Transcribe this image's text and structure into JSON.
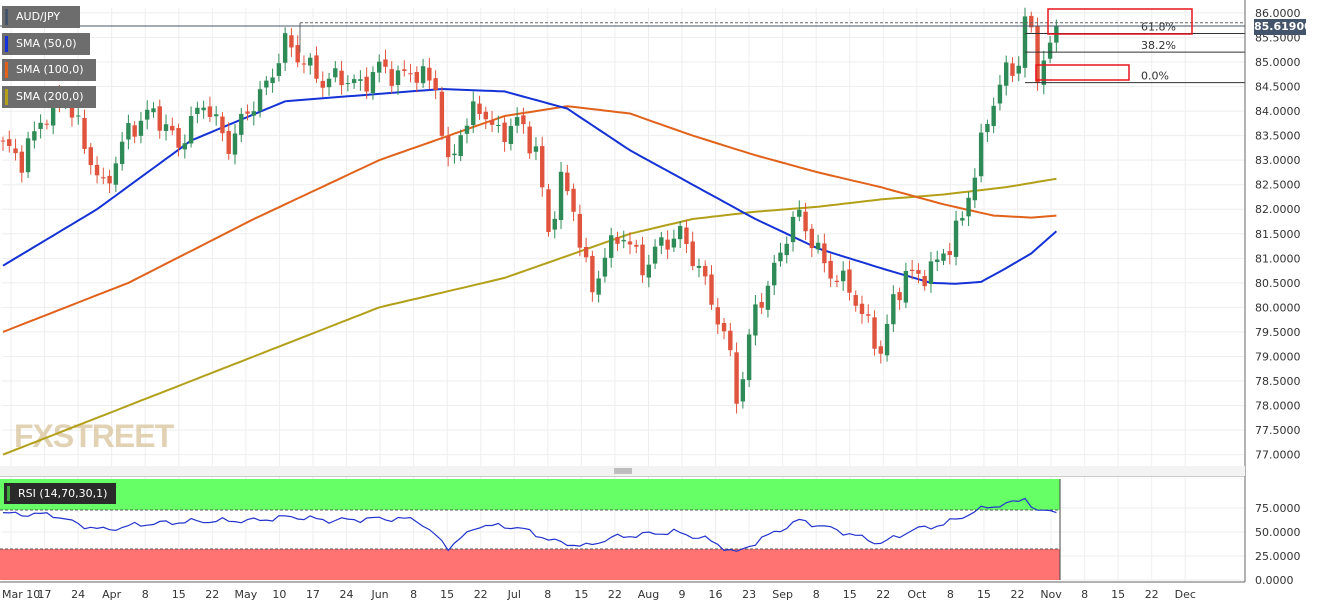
{
  "symbol": "AUD/JPY",
  "indicators": [
    {
      "label": "SMA (50,0)",
      "color": "#1432d6"
    },
    {
      "label": "SMA (100,0)",
      "color": "#e0621b"
    },
    {
      "label": "SMA (200,0)",
      "color": "#b3a01a"
    }
  ],
  "rsi_label": "RSI (14,70,30,1)",
  "last_price": "85.61900",
  "watermark": "FXSTREET",
  "colors": {
    "bull": "#2e8b57",
    "bear": "#e0533d",
    "sma50": "#1432d6",
    "sma100": "#e0621b",
    "sma200": "#b3a01a",
    "rsi_line": "#2233cc",
    "rsi_overbought_zone": "#66ff66",
    "rsi_oversold_zone": "#ff7373",
    "annotation_box": "#e8141e"
  },
  "fibonacci": {
    "levels": [
      {
        "label": "61.8%",
        "value": 85.58
      },
      {
        "label": "38.2%",
        "value": 85.2
      },
      {
        "label": "0.0%",
        "value": 84.58
      }
    ],
    "top_value": 85.8
  },
  "chart_data": [
    {
      "type": "candlestick",
      "title": "AUD/JPY",
      "x_ticks": [
        "Mar 10",
        "17",
        "24",
        "Apr",
        "8",
        "15",
        "22",
        "May",
        "10",
        "17",
        "24",
        "Jun",
        "8",
        "15",
        "22",
        "Jul",
        "8",
        "15",
        "22",
        "Aug",
        "9",
        "16",
        "23",
        "Sep",
        "8",
        "15",
        "22",
        "Oct",
        "8",
        "15",
        "22",
        "Nov",
        "8",
        "15",
        "22",
        "Dec"
      ],
      "y_ticks": [
        "77.0000",
        "77.5000",
        "78.0000",
        "78.5000",
        "79.0000",
        "79.5000",
        "80.0000",
        "80.5000",
        "81.0000",
        "81.5000",
        "82.0000",
        "82.5000",
        "83.0000",
        "83.5000",
        "84.0000",
        "84.5000",
        "85.0000",
        "85.5000",
        "86.0000"
      ],
      "ylim": [
        76.85,
        86.1
      ],
      "close_anchors": [
        [
          0,
          83.3
        ],
        [
          3,
          83.0
        ],
        [
          6,
          83.8
        ],
        [
          10,
          84.3
        ],
        [
          14,
          83.0
        ],
        [
          16,
          82.4
        ],
        [
          20,
          83.6
        ],
        [
          24,
          84.0
        ],
        [
          28,
          83.3
        ],
        [
          32,
          84.2
        ],
        [
          36,
          83.3
        ],
        [
          39,
          84.0
        ],
        [
          42,
          84.5
        ],
        [
          45,
          85.4
        ],
        [
          48,
          85.0
        ],
        [
          51,
          84.6
        ],
        [
          54,
          84.7
        ],
        [
          57,
          84.5
        ],
        [
          60,
          84.9
        ],
        [
          63,
          84.7
        ],
        [
          66,
          84.8
        ],
        [
          69,
          84.5
        ],
        [
          71,
          82.8
        ],
        [
          73,
          83.6
        ],
        [
          76,
          84.1
        ],
        [
          79,
          83.5
        ],
        [
          82,
          83.8
        ],
        [
          85,
          83.2
        ],
        [
          87,
          81.5
        ],
        [
          89,
          82.6
        ],
        [
          91,
          82.0
        ],
        [
          93,
          80.8
        ],
        [
          94,
          80.3
        ],
        [
          96,
          81.1
        ],
        [
          99,
          81.5
        ],
        [
          102,
          80.8
        ],
        [
          105,
          81.3
        ],
        [
          108,
          81.5
        ],
        [
          111,
          80.8
        ],
        [
          114,
          79.8
        ],
        [
          116,
          79.0
        ],
        [
          117,
          78.2
        ],
        [
          118,
          78.6
        ],
        [
          120,
          80.0
        ],
        [
          122,
          80.4
        ],
        [
          125,
          81.5
        ],
        [
          127,
          81.9
        ],
        [
          130,
          81.1
        ],
        [
          132,
          80.7
        ],
        [
          135,
          80.4
        ],
        [
          138,
          79.6
        ],
        [
          140,
          79.1
        ],
        [
          142,
          80.1
        ],
        [
          144,
          80.7
        ],
        [
          146,
          80.6
        ],
        [
          149,
          80.9
        ],
        [
          151,
          81.3
        ],
        [
          153,
          81.8
        ],
        [
          155,
          82.8
        ],
        [
          157,
          83.8
        ],
        [
          159,
          84.6
        ],
        [
          162,
          85.0
        ],
        [
          163,
          85.9
        ],
        [
          164,
          85.5
        ],
        [
          165,
          84.8
        ],
        [
          167,
          85.3
        ],
        [
          168,
          85.62
        ]
      ],
      "sma50_anchors": [
        [
          0,
          80.85
        ],
        [
          15,
          82.0
        ],
        [
          30,
          83.4
        ],
        [
          45,
          84.2
        ],
        [
          60,
          84.35
        ],
        [
          70,
          84.45
        ],
        [
          80,
          84.4
        ],
        [
          90,
          84.05
        ],
        [
          100,
          83.2
        ],
        [
          110,
          82.5
        ],
        [
          120,
          81.8
        ],
        [
          130,
          81.2
        ],
        [
          140,
          80.8
        ],
        [
          148,
          80.5
        ],
        [
          152,
          80.48
        ],
        [
          156,
          80.52
        ],
        [
          160,
          80.8
        ],
        [
          164,
          81.1
        ],
        [
          168,
          81.55
        ]
      ],
      "sma100_anchors": [
        [
          0,
          79.5
        ],
        [
          20,
          80.5
        ],
        [
          40,
          81.8
        ],
        [
          60,
          83.0
        ],
        [
          80,
          83.9
        ],
        [
          90,
          84.1
        ],
        [
          100,
          83.95
        ],
        [
          110,
          83.5
        ],
        [
          120,
          83.1
        ],
        [
          130,
          82.75
        ],
        [
          140,
          82.45
        ],
        [
          150,
          82.1
        ],
        [
          158,
          81.87
        ],
        [
          164,
          81.83
        ],
        [
          168,
          81.87
        ]
      ],
      "sma200_anchors": [
        [
          0,
          77.0
        ],
        [
          30,
          78.5
        ],
        [
          60,
          80.0
        ],
        [
          80,
          80.6
        ],
        [
          90,
          81.05
        ],
        [
          100,
          81.5
        ],
        [
          110,
          81.8
        ],
        [
          120,
          81.95
        ],
        [
          130,
          82.05
        ],
        [
          140,
          82.2
        ],
        [
          150,
          82.3
        ],
        [
          160,
          82.45
        ],
        [
          168,
          82.62
        ]
      ],
      "n_candles": 169
    },
    {
      "type": "line",
      "title": "RSI (14,70,30,1)",
      "y_ticks": [
        "0.0000",
        "25.0000",
        "50.0000",
        "75.0000"
      ],
      "ylim": [
        0,
        100
      ],
      "overbought": 70,
      "oversold": 30,
      "rsi_anchors": [
        [
          0,
          69
        ],
        [
          8,
          68
        ],
        [
          12,
          58
        ],
        [
          16,
          52
        ],
        [
          22,
          58
        ],
        [
          30,
          61
        ],
        [
          40,
          62
        ],
        [
          46,
          66
        ],
        [
          52,
          62
        ],
        [
          60,
          64
        ],
        [
          66,
          63
        ],
        [
          71,
          34
        ],
        [
          76,
          57
        ],
        [
          82,
          55
        ],
        [
          88,
          40
        ],
        [
          93,
          35
        ],
        [
          97,
          44
        ],
        [
          103,
          48
        ],
        [
          107,
          50
        ],
        [
          112,
          43
        ],
        [
          117,
          28
        ],
        [
          121,
          43
        ],
        [
          127,
          62
        ],
        [
          133,
          52
        ],
        [
          138,
          42
        ],
        [
          140,
          38
        ],
        [
          145,
          52
        ],
        [
          150,
          58
        ],
        [
          153,
          66
        ],
        [
          157,
          76
        ],
        [
          161,
          80
        ],
        [
          163,
          86
        ],
        [
          165,
          70
        ],
        [
          167,
          73
        ],
        [
          168,
          72
        ]
      ]
    }
  ]
}
